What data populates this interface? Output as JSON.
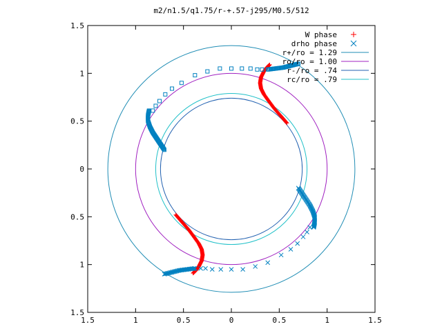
{
  "chart_data": {
    "type": "scatter",
    "title": "m2/n1.5/q1.75/r-+.57-j295/M0.5/512",
    "xlabel": "",
    "ylabel": "",
    "xlim": [
      -1.5,
      1.5
    ],
    "ylim": [
      -1.5,
      1.5
    ],
    "x_tick_values": [
      -1.5,
      -1,
      -0.5,
      0,
      0.5,
      1,
      1.5
    ],
    "y_tick_values": [
      1.5,
      1,
      0.5,
      0,
      -0.5,
      -1,
      -1.5
    ],
    "x_tick_labels": [
      "1.5",
      "1",
      "0.5",
      "0",
      "0.5",
      "1",
      "1.5"
    ],
    "y_tick_labels": [
      "1.5",
      "1",
      "0.5",
      "0",
      "0.5",
      "1",
      "1.5"
    ],
    "grid": false,
    "legend_position": "top-right",
    "colors": {
      "w_phase": "#ff0000",
      "drho_phase": "#0080c0",
      "r_plus": "#1e8cb4",
      "ro": "#a020c0",
      "r_minus": "#2060b0",
      "rc": "#20c0c8",
      "axes": "#000000"
    },
    "series": [
      {
        "name": "W phase",
        "marker": "plus",
        "points_note": "dense S-shaped clusters",
        "segments": [
          [
            [
              0.58,
              0.48
            ],
            [
              0.52,
              0.55
            ],
            [
              0.45,
              0.63
            ],
            [
              0.39,
              0.71
            ],
            [
              0.34,
              0.78
            ],
            [
              0.31,
              0.84
            ],
            [
              0.3,
              0.9
            ],
            [
              0.31,
              0.96
            ],
            [
              0.34,
              1.02
            ],
            [
              0.37,
              1.06
            ],
            [
              0.4,
              1.09
            ]
          ],
          [
            [
              -0.58,
              -0.48
            ],
            [
              -0.52,
              -0.55
            ],
            [
              -0.45,
              -0.63
            ],
            [
              -0.39,
              -0.71
            ],
            [
              -0.34,
              -0.78
            ],
            [
              -0.31,
              -0.84
            ],
            [
              -0.3,
              -0.9
            ],
            [
              -0.31,
              -0.96
            ],
            [
              -0.34,
              -1.02
            ],
            [
              -0.37,
              -1.06
            ],
            [
              -0.4,
              -1.09
            ]
          ]
        ]
      },
      {
        "name": "drho phase",
        "marker": "cross",
        "segments": [
          [
            [
              0.7,
              -0.2
            ],
            [
              0.74,
              -0.26
            ],
            [
              0.78,
              -0.32
            ],
            [
              0.82,
              -0.38
            ],
            [
              0.85,
              -0.44
            ],
            [
              0.87,
              -0.5
            ],
            [
              0.87,
              -0.56
            ],
            [
              0.86,
              -0.61
            ]
          ],
          [
            [
              -0.7,
              -1.1
            ],
            [
              -0.62,
              -1.08
            ],
            [
              -0.54,
              -1.06
            ],
            [
              -0.46,
              -1.05
            ],
            [
              -0.38,
              -1.04
            ]
          ]
        ],
        "sparse": [
          [
            -0.32,
            -1.04
          ],
          [
            -0.27,
            -1.04
          ],
          [
            -0.2,
            -1.05
          ],
          [
            -0.11,
            -1.05
          ],
          [
            0.0,
            -1.05
          ],
          [
            0.12,
            -1.05
          ],
          [
            0.25,
            -1.02
          ],
          [
            0.38,
            -0.98
          ],
          [
            0.52,
            -0.9
          ],
          [
            0.62,
            -0.84
          ],
          [
            0.69,
            -0.78
          ],
          [
            0.75,
            -0.71
          ],
          [
            0.79,
            -0.66
          ],
          [
            0.82,
            -0.61
          ]
        ]
      },
      {
        "name": "drho phase (squares)",
        "marker": "square",
        "segments": [
          [
            [
              -0.7,
              0.2
            ],
            [
              -0.74,
              0.26
            ],
            [
              -0.78,
              0.32
            ],
            [
              -0.82,
              0.38
            ],
            [
              -0.85,
              0.44
            ],
            [
              -0.87,
              0.5
            ],
            [
              -0.87,
              0.56
            ],
            [
              -0.86,
              0.61
            ]
          ],
          [
            [
              0.7,
              1.1
            ],
            [
              0.62,
              1.08
            ],
            [
              0.54,
              1.06
            ],
            [
              0.46,
              1.05
            ],
            [
              0.38,
              1.04
            ]
          ]
        ],
        "sparse": [
          [
            0.32,
            1.04
          ],
          [
            0.27,
            1.04
          ],
          [
            0.2,
            1.05
          ],
          [
            0.11,
            1.05
          ],
          [
            0.0,
            1.05
          ],
          [
            -0.12,
            1.05
          ],
          [
            -0.25,
            1.02
          ],
          [
            -0.38,
            0.98
          ],
          [
            -0.52,
            0.9
          ],
          [
            -0.62,
            0.84
          ],
          [
            -0.69,
            0.78
          ],
          [
            -0.75,
            0.71
          ],
          [
            -0.79,
            0.66
          ],
          [
            -0.82,
            0.61
          ]
        ]
      }
    ],
    "circles": [
      {
        "name": "r+/ro = 1.29",
        "r": 1.29,
        "color": "#1e8cb4"
      },
      {
        "name": "ro/ro = 1.00",
        "r": 1.0,
        "color": "#a020c0"
      },
      {
        "name": "r-/ro = .74",
        "r": 0.74,
        "color": "#2060b0"
      },
      {
        "name": "rc/ro = .79",
        "r": 0.79,
        "color": "#20c0c8"
      }
    ],
    "legend": [
      {
        "label": "W phase",
        "kind": "plus",
        "color": "#ff0000"
      },
      {
        "label": "drho phase",
        "kind": "cross",
        "color": "#0080c0"
      },
      {
        "label": "r+/ro = 1.29",
        "kind": "line",
        "color": "#1e8cb4"
      },
      {
        "label": "ro/ro = 1.00",
        "kind": "line",
        "color": "#a020c0"
      },
      {
        "label": "r-/ro = .74",
        "kind": "line",
        "color": "#2060b0"
      },
      {
        "label": "rc/ro = .79",
        "kind": "line",
        "color": "#20c0c8"
      }
    ]
  }
}
